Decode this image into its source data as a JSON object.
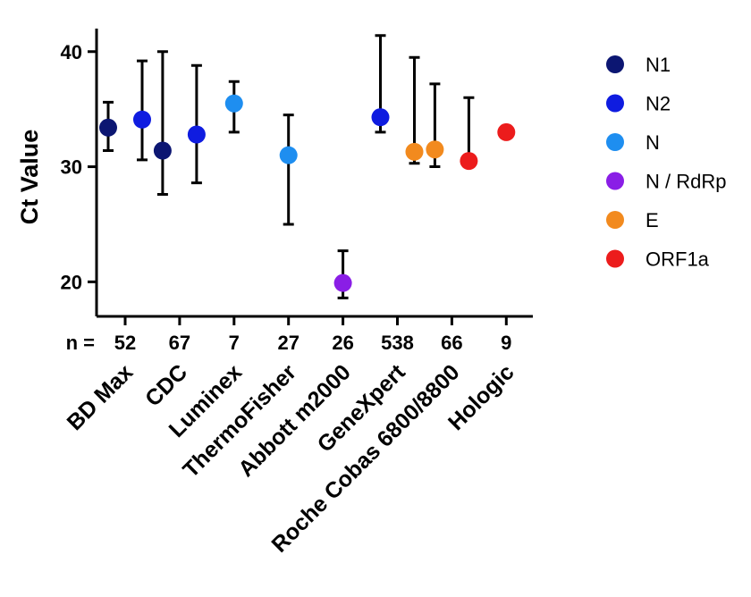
{
  "chart_data": {
    "type": "scatter",
    "ylabel": "Ct Value",
    "xlabel": "",
    "ylim": [
      17,
      42
    ],
    "yticks": [
      20,
      30,
      40
    ],
    "n_prefix": "n =",
    "categories": [
      "BD Max",
      "CDC",
      "Luminex",
      "ThermoFisher",
      "Abbott m2000",
      "GeneXpert",
      "Roche Cobas 6800/8800",
      "Hologic"
    ],
    "n_values": [
      "52",
      "67",
      "7",
      "27",
      "26",
      "538",
      "66",
      "9"
    ],
    "legend_position": "right",
    "series": [
      {
        "name": "N1",
        "color": "#0c1672"
      },
      {
        "name": "N2",
        "color": "#0f1ce0"
      },
      {
        "name": "N",
        "color": "#1e8ef0"
      },
      {
        "name": "N / RdRp",
        "color": "#8a1ee6"
      },
      {
        "name": "E",
        "color": "#f28a1e"
      },
      {
        "name": "ORF1a",
        "color": "#ec1c1c"
      }
    ],
    "points": [
      {
        "category": "BD Max",
        "offset": -0.5,
        "target": "N1",
        "y": 33.4,
        "low": 31.4,
        "high": 35.6
      },
      {
        "category": "BD Max",
        "offset": 0.5,
        "target": "N2",
        "y": 34.1,
        "low": 30.6,
        "high": 39.2
      },
      {
        "category": "CDC",
        "offset": -0.5,
        "target": "N1",
        "y": 31.4,
        "low": 27.6,
        "high": 40.0
      },
      {
        "category": "CDC",
        "offset": 0.5,
        "target": "N2",
        "y": 32.8,
        "low": 28.6,
        "high": 38.8
      },
      {
        "category": "Luminex",
        "offset": 0,
        "target": "N",
        "y": 35.5,
        "low": 33.0,
        "high": 37.4
      },
      {
        "category": "ThermoFisher",
        "offset": 0,
        "target": "N",
        "y": 31.0,
        "low": 25.0,
        "high": 34.5
      },
      {
        "category": "Abbott m2000",
        "offset": 0,
        "target": "N / RdRp",
        "y": 19.9,
        "low": 18.6,
        "high": 22.7
      },
      {
        "category": "GeneXpert",
        "offset": -0.5,
        "target": "N2",
        "y": 34.3,
        "low": 33.0,
        "high": 41.4
      },
      {
        "category": "GeneXpert",
        "offset": 0.5,
        "target": "E",
        "y": 31.3,
        "low": 30.3,
        "high": 39.5
      },
      {
        "category": "Roche Cobas 6800/8800",
        "offset": -0.5,
        "target": "E",
        "y": 31.5,
        "low": 30.0,
        "high": 37.2
      },
      {
        "category": "Roche Cobas 6800/8800",
        "offset": 0.5,
        "target": "ORF1a",
        "y": 30.5,
        "low": 30.5,
        "high": 36.0
      },
      {
        "category": "Hologic",
        "offset": 0,
        "target": "ORF1a",
        "y": 33.0,
        "low": 33.0,
        "high": 33.0
      }
    ]
  }
}
